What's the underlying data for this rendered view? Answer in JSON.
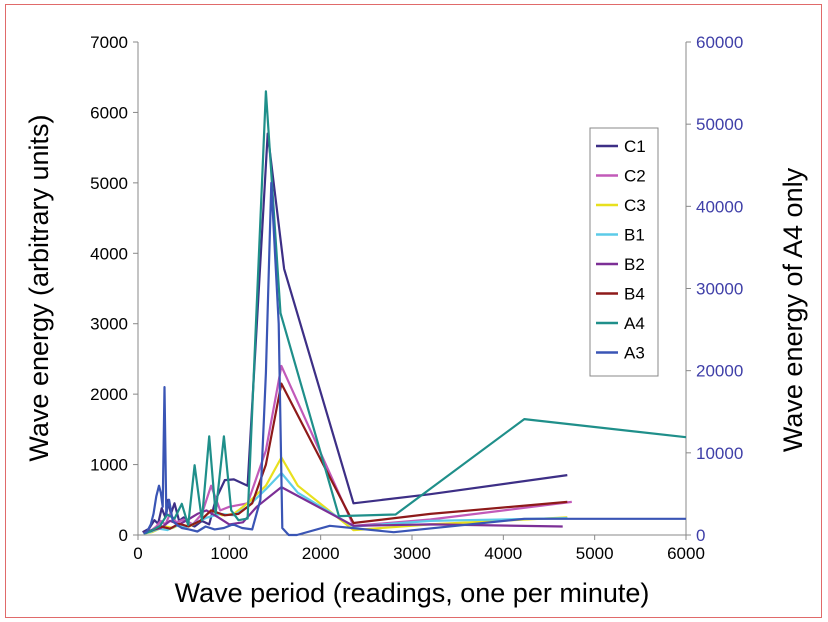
{
  "chart_data": {
    "type": "line",
    "title": "",
    "xlabel": "Wave period (readings, one per minute)",
    "ylabel": "Wave energy (arbitrary units)",
    "y2label": "Wave energy of A4 only",
    "xlim": [
      0,
      6000
    ],
    "ylim": [
      0,
      7000
    ],
    "y2lim": [
      0,
      60000
    ],
    "x_ticks": [
      "0",
      "1000",
      "2000",
      "3000",
      "4000",
      "5000",
      "6000"
    ],
    "y_ticks": [
      "0",
      "1000",
      "2000",
      "3000",
      "4000",
      "5000",
      "6000",
      "7000"
    ],
    "y2_ticks": [
      "0",
      "10000",
      "20000",
      "30000",
      "40000",
      "50000",
      "60000"
    ],
    "legend_position": "upper-right",
    "series": [
      {
        "name": "C1",
        "color": "#3d2f86",
        "axis": "left",
        "x": [
          50,
          120,
          180,
          220,
          260,
          300,
          330,
          360,
          400,
          450,
          500,
          560,
          620,
          700,
          780,
          850,
          950,
          1050,
          1200,
          1420,
          1600,
          2360,
          3200,
          4700
        ],
        "y": [
          40,
          90,
          210,
          160,
          380,
          250,
          500,
          300,
          450,
          200,
          250,
          150,
          120,
          200,
          150,
          500,
          780,
          790,
          700,
          5700,
          3780,
          450,
          580,
          850
        ]
      },
      {
        "name": "C2",
        "color": "#c25ab9",
        "axis": "left",
        "x": [
          60,
          140,
          200,
          250,
          300,
          350,
          420,
          500,
          600,
          700,
          800,
          900,
          1000,
          1200,
          1400,
          1570,
          2360,
          3200,
          4750
        ],
        "y": [
          30,
          60,
          120,
          200,
          150,
          300,
          180,
          220,
          150,
          300,
          700,
          350,
          400,
          450,
          1200,
          2400,
          130,
          220,
          470
        ]
      },
      {
        "name": "C3",
        "color": "#e8e01e",
        "axis": "left",
        "x": [
          60,
          150,
          220,
          300,
          380,
          460,
          560,
          680,
          800,
          920,
          1050,
          1200,
          1400,
          1570,
          1750,
          2360,
          3200,
          4700
        ],
        "y": [
          20,
          40,
          80,
          120,
          100,
          150,
          120,
          200,
          350,
          280,
          300,
          450,
          700,
          1100,
          700,
          70,
          150,
          250
        ]
      },
      {
        "name": "B1",
        "color": "#5ccbe8",
        "axis": "left",
        "x": [
          60,
          150,
          230,
          320,
          420,
          520,
          640,
          760,
          900,
          1050,
          1200,
          1400,
          1570,
          1750,
          2360,
          3200,
          4700
        ],
        "y": [
          20,
          50,
          90,
          70,
          130,
          110,
          180,
          250,
          300,
          280,
          400,
          650,
          880,
          600,
          120,
          200,
          240
        ]
      },
      {
        "name": "B2",
        "color": "#7c2f96",
        "axis": "left",
        "x": [
          60,
          150,
          250,
          350,
          450,
          550,
          650,
          750,
          880,
          1000,
          1150,
          1300,
          1570,
          2360,
          3200,
          4650
        ],
        "y": [
          30,
          70,
          100,
          200,
          150,
          220,
          300,
          350,
          250,
          150,
          180,
          400,
          680,
          130,
          150,
          120
        ]
      },
      {
        "name": "B4",
        "color": "#8e1a1a",
        "axis": "left",
        "x": [
          60,
          150,
          250,
          350,
          450,
          550,
          680,
          800,
          950,
          1100,
          1250,
          1400,
          1570,
          2360,
          3200,
          4700
        ],
        "y": [
          30,
          60,
          120,
          90,
          160,
          120,
          200,
          350,
          280,
          300,
          450,
          1000,
          2150,
          170,
          300,
          470
        ]
      },
      {
        "name": "A4",
        "color": "#1f8f8a",
        "axis": "right",
        "x": [
          80,
          160,
          240,
          320,
          400,
          480,
          550,
          620,
          700,
          780,
          850,
          940,
          1020,
          1100,
          1200,
          1400,
          1560,
          2200,
          2820,
          4230,
          6000
        ],
        "y": [
          200,
          600,
          1100,
          2500,
          2000,
          3800,
          1200,
          8500,
          1800,
          12000,
          2600,
          12000,
          3000,
          1800,
          2000,
          54000,
          27000,
          2300,
          2500,
          14100,
          11900
        ]
      },
      {
        "name": "A3",
        "color": "#3a55b5",
        "axis": "left",
        "x": [
          60,
          100,
          140,
          170,
          200,
          230,
          250,
          270,
          290,
          310,
          340,
          380,
          420,
          480,
          560,
          650,
          740,
          840,
          940,
          1040,
          1140,
          1250,
          1340,
          1400,
          1460,
          1540,
          1580,
          1650,
          1740,
          2100,
          2800,
          4230,
          6000
        ],
        "y": [
          20,
          50,
          150,
          300,
          550,
          700,
          600,
          400,
          2100,
          300,
          500,
          200,
          150,
          100,
          80,
          50,
          120,
          80,
          100,
          150,
          100,
          80,
          500,
          2300,
          5000,
          3000,
          100,
          0,
          0,
          130,
          40,
          230,
          230
        ]
      }
    ]
  }
}
